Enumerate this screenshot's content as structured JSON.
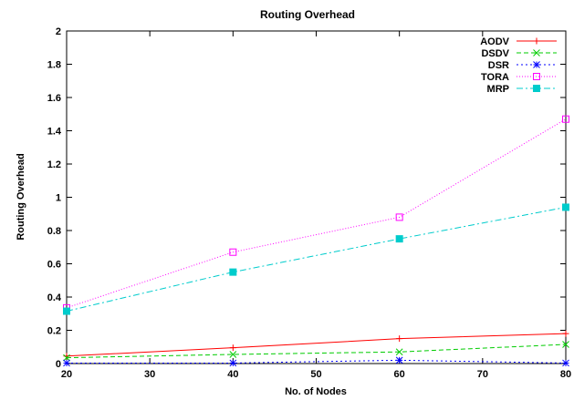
{
  "chart_data": {
    "type": "line",
    "title": "Routing Overhead",
    "xlabel": "No. of Nodes",
    "ylabel": "Routing Overhead",
    "xlim": [
      20,
      80
    ],
    "ylim": [
      0,
      2
    ],
    "xticks": [
      20,
      30,
      40,
      50,
      60,
      70,
      80
    ],
    "yticks": [
      0,
      0.2,
      0.4,
      0.6,
      0.8,
      1,
      1.2,
      1.4,
      1.6,
      1.8,
      2
    ],
    "grid": false,
    "legend_position": "top-right",
    "x": [
      20,
      40,
      60,
      80
    ],
    "series": [
      {
        "name": "AODV",
        "values": [
          0.045,
          0.095,
          0.15,
          0.18
        ],
        "color": "#ff0000",
        "marker": "plus",
        "dash": "solid"
      },
      {
        "name": "DSDV",
        "values": [
          0.035,
          0.055,
          0.07,
          0.115
        ],
        "color": "#00cc00",
        "marker": "cross",
        "dash": "dashed"
      },
      {
        "name": "DSR",
        "values": [
          0.003,
          0.003,
          0.02,
          0.003
        ],
        "color": "#0000ff",
        "marker": "asterisk",
        "dash": "dotted"
      },
      {
        "name": "TORA",
        "values": [
          0.335,
          0.67,
          0.88,
          1.47
        ],
        "color": "#ff00ff",
        "marker": "square-open",
        "dash": "fine-dotted"
      },
      {
        "name": "MRP",
        "values": [
          0.315,
          0.55,
          0.75,
          0.94
        ],
        "color": "#00cccc",
        "marker": "square-filled",
        "dash": "dash-dot"
      }
    ]
  }
}
